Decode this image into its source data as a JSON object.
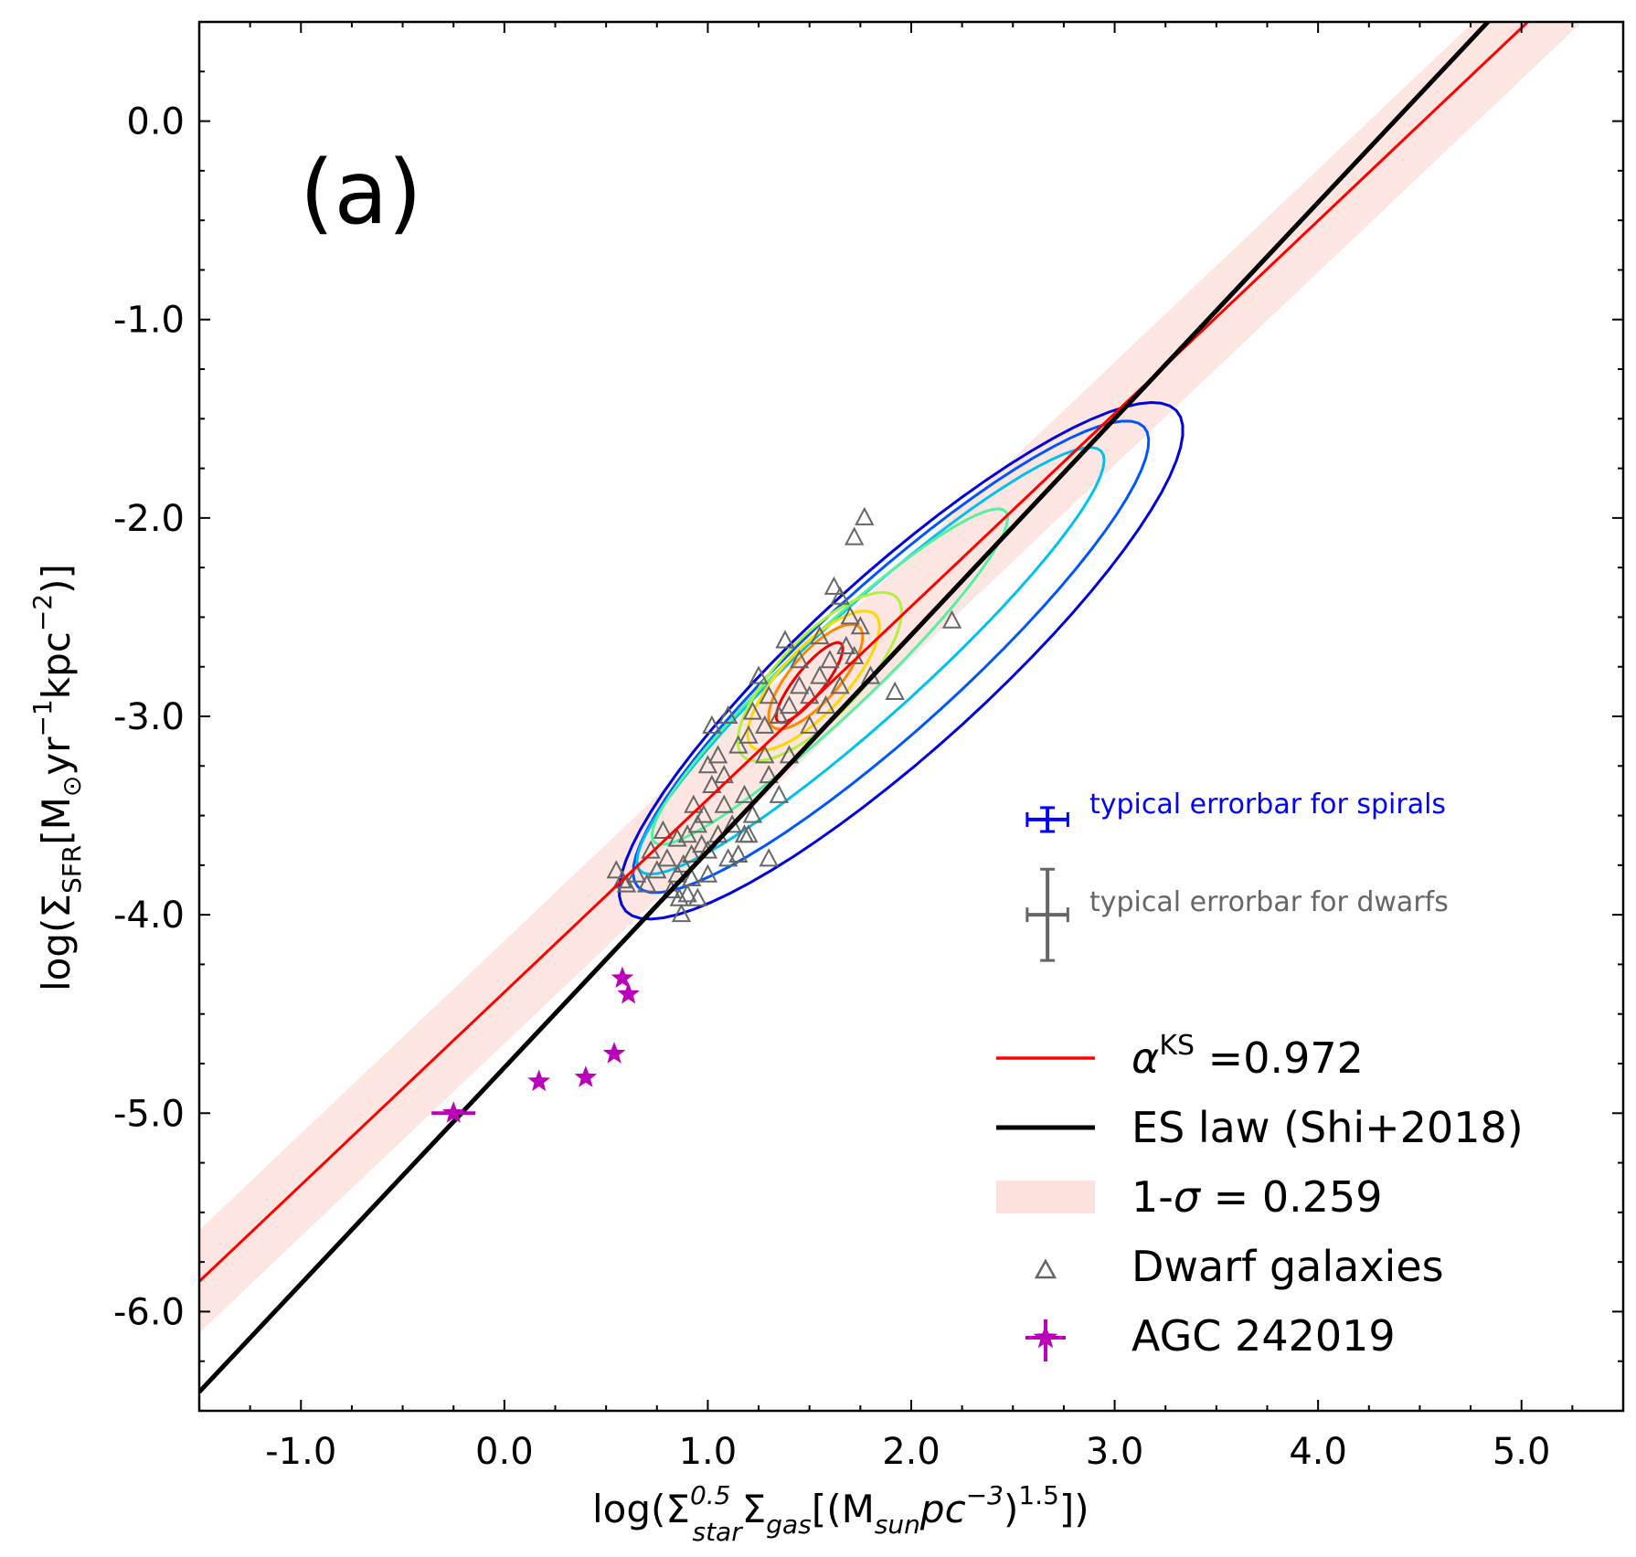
{
  "chart_data": {
    "type": "scatter",
    "panel_label": "(a)",
    "xlabel": {
      "prefix": "log(Σ",
      "sup1": "0.5",
      "sub1": "star",
      "mid": "Σ",
      "sub2": "gas",
      "units_open": "[(M",
      "sub3": "sun",
      "units_mid": "pc",
      "sup3": "−3",
      "units_close": ")",
      "sup4": "1.5",
      "suffix": "])"
    },
    "ylabel": {
      "prefix": "log(Σ",
      "sub1": "SFR",
      "mid": "[M",
      "sub2": "⊙",
      "mid2": "yr",
      "sup1": "−1",
      "mid3": "kpc",
      "sup2": "−2",
      "suffix": ")]"
    },
    "xlim": [
      -1.5,
      5.5
    ],
    "ylim": [
      -6.5,
      0.5
    ],
    "xticks": [
      -1.0,
      0.0,
      1.0,
      2.0,
      3.0,
      4.0,
      5.0
    ],
    "xtick_labels": [
      "-1.0",
      "0.0",
      "1.0",
      "2.0",
      "3.0",
      "4.0",
      "5.0"
    ],
    "yticks": [
      0.0,
      -1.0,
      -2.0,
      -3.0,
      -4.0,
      -5.0,
      -6.0
    ],
    "ytick_labels": [
      "0.0",
      "-1.0",
      "-2.0",
      "-3.0",
      "-4.0",
      "-5.0",
      "-6.0"
    ],
    "fit_line": {
      "name": "αKS =0.972",
      "slope": 0.972,
      "intercept": -4.39,
      "color": "#ff0000",
      "sigma": 0.259
    },
    "es_law": {
      "name": "ES law (Shi+2018)",
      "slope": 1.09,
      "intercept": -4.77,
      "color": "#000000"
    },
    "contours": [
      {
        "level": 1,
        "color": "#0000dd",
        "cx": 1.95,
        "cy": -2.72,
        "a": 1.85,
        "b": 0.44,
        "angle": 43
      },
      {
        "level": 2,
        "color": "#0055ff",
        "cx": 1.9,
        "cy": -2.7,
        "a": 1.7,
        "b": 0.36,
        "angle": 43
      },
      {
        "level": 3,
        "color": "#00c0f0",
        "cx": 1.8,
        "cy": -2.72,
        "a": 1.55,
        "b": 0.27,
        "angle": 43
      },
      {
        "level": 4,
        "color": "#55f0a0",
        "cx": 1.6,
        "cy": -2.8,
        "a": 1.2,
        "b": 0.2,
        "angle": 44
      },
      {
        "level": 5,
        "color": "#b0f040",
        "cx": 1.55,
        "cy": -2.8,
        "a": 0.55,
        "b": 0.2,
        "angle": 47
      },
      {
        "level": 6,
        "color": "#ffd800",
        "cx": 1.52,
        "cy": -2.82,
        "a": 0.45,
        "b": 0.16,
        "angle": 48
      },
      {
        "level": 7,
        "color": "#ff8800",
        "cx": 1.53,
        "cy": -2.8,
        "a": 0.33,
        "b": 0.12,
        "angle": 50
      },
      {
        "level": 8,
        "color": "#ee0000",
        "cx": 1.5,
        "cy": -2.83,
        "a": 0.25,
        "b": 0.07,
        "angle": 52
      }
    ],
    "dwarf_galaxies": {
      "name": "Dwarf galaxies",
      "color": "#666666",
      "points": [
        [
          1.77,
          -2.0
        ],
        [
          1.72,
          -2.1
        ],
        [
          2.2,
          -2.52
        ],
        [
          1.62,
          -2.35
        ],
        [
          1.65,
          -2.4
        ],
        [
          1.92,
          -2.88
        ],
        [
          1.7,
          -2.5
        ],
        [
          1.75,
          -2.55
        ],
        [
          1.68,
          -2.65
        ],
        [
          1.72,
          -2.7
        ],
        [
          1.6,
          -2.72
        ],
        [
          1.55,
          -2.8
        ],
        [
          1.5,
          -2.9
        ],
        [
          1.45,
          -2.85
        ],
        [
          1.4,
          -2.95
        ],
        [
          1.35,
          -3.0
        ],
        [
          1.3,
          -2.9
        ],
        [
          1.28,
          -3.05
        ],
        [
          1.22,
          -2.98
        ],
        [
          1.2,
          -3.1
        ],
        [
          1.15,
          -3.15
        ],
        [
          1.1,
          -3.0
        ],
        [
          1.05,
          -3.2
        ],
        [
          1.0,
          -3.25
        ],
        [
          1.02,
          -3.35
        ],
        [
          1.25,
          -2.8
        ],
        [
          1.3,
          -3.3
        ],
        [
          1.18,
          -3.4
        ],
        [
          1.08,
          -3.45
        ],
        [
          0.98,
          -3.5
        ],
        [
          0.95,
          -3.55
        ],
        [
          0.9,
          -3.6
        ],
        [
          0.92,
          -3.7
        ],
        [
          0.88,
          -3.75
        ],
        [
          0.85,
          -3.8
        ],
        [
          0.8,
          -3.72
        ],
        [
          0.75,
          -3.78
        ],
        [
          0.7,
          -3.85
        ],
        [
          0.65,
          -3.8
        ],
        [
          0.6,
          -3.85
        ],
        [
          0.55,
          -3.78
        ],
        [
          0.58,
          -3.83
        ],
        [
          0.72,
          -3.68
        ],
        [
          0.82,
          -3.88
        ],
        [
          0.86,
          -3.92
        ],
        [
          0.87,
          -4.0
        ],
        [
          0.9,
          -3.9
        ],
        [
          0.95,
          -3.92
        ],
        [
          1.0,
          -3.8
        ],
        [
          1.05,
          -3.6
        ],
        [
          1.12,
          -3.55
        ],
        [
          1.18,
          -3.6
        ],
        [
          1.22,
          -3.5
        ],
        [
          1.35,
          -3.4
        ],
        [
          1.4,
          -3.2
        ],
        [
          1.5,
          -3.05
        ],
        [
          1.58,
          -2.95
        ],
        [
          1.65,
          -2.85
        ],
        [
          1.8,
          -2.8
        ],
        [
          1.02,
          -3.05
        ],
        [
          1.08,
          -3.3
        ],
        [
          0.97,
          -3.65
        ],
        [
          0.93,
          -3.45
        ],
        [
          0.85,
          -3.62
        ],
        [
          0.78,
          -3.58
        ],
        [
          1.15,
          -3.7
        ],
        [
          1.2,
          -3.6
        ],
        [
          1.3,
          -3.72
        ],
        [
          1.28,
          -3.2
        ],
        [
          1.1,
          -3.72
        ],
        [
          1.0,
          -3.68
        ],
        [
          0.92,
          -3.82
        ],
        [
          1.38,
          -2.62
        ],
        [
          1.45,
          -2.72
        ],
        [
          1.55,
          -2.6
        ]
      ]
    },
    "agc": {
      "name": "AGC 242019",
      "color": "#bb00bb",
      "points": [
        [
          -0.25,
          -5.0
        ],
        [
          0.17,
          -4.84
        ],
        [
          0.4,
          -4.82
        ],
        [
          0.54,
          -4.7
        ],
        [
          0.58,
          -4.32
        ],
        [
          0.61,
          -4.4
        ]
      ]
    },
    "error_spirals": {
      "label": "typical errorbar for spirals",
      "color": "#0000ff",
      "x": 2.67,
      "y": -3.52,
      "xerr": 0.1,
      "yerr": 0.06
    },
    "error_dwarfs": {
      "label": "typical errorbar for dwarfs",
      "color": "#666666",
      "x": 2.67,
      "y": -4.0,
      "xerr": 0.1,
      "yerr": 0.23
    },
    "legend": {
      "position": "lower right",
      "items": [
        {
          "key": "fit",
          "label_main": "α",
          "label_sup": "KS",
          "label_rest": " =0.972"
        },
        {
          "key": "es",
          "label": "ES law (Shi+2018)"
        },
        {
          "key": "band",
          "label_main": "1-",
          "label_sym": "σ",
          "label_rest": " = 0.259"
        },
        {
          "key": "dwarf",
          "label": "Dwarf galaxies"
        },
        {
          "key": "agc",
          "label": "AGC 242019"
        }
      ]
    }
  }
}
